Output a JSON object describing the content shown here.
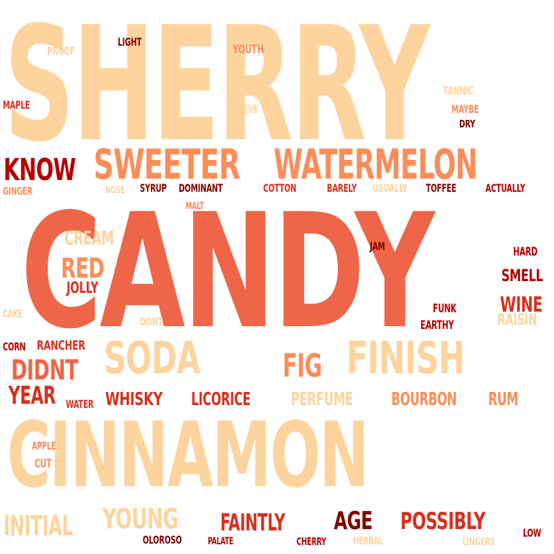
{
  "palette": {
    "peach": "#fdd49e",
    "salmon": "#fc8d59",
    "coral": "#ef6548",
    "red": "#d7301f",
    "dark_red": "#b30000",
    "maroon": "#7f0000"
  },
  "words": [
    {
      "text": "SHERRY",
      "color": "peach"
    },
    {
      "text": "CANDY",
      "color": "coral"
    },
    {
      "text": "CINNAMON",
      "color": "peach"
    },
    {
      "text": "SWEETER",
      "color": "salmon"
    },
    {
      "text": "WATERMELON",
      "color": "salmon"
    },
    {
      "text": "SODA",
      "color": "peach"
    },
    {
      "text": "FINISH",
      "color": "peach"
    },
    {
      "text": "KNOW",
      "color": "dark_red"
    },
    {
      "text": "FIG",
      "color": "salmon"
    },
    {
      "text": "RED",
      "color": "salmon"
    },
    {
      "text": "DIDNT",
      "color": "coral"
    },
    {
      "text": "YEAR",
      "color": "red"
    },
    {
      "text": "POSSIBLY",
      "color": "red"
    },
    {
      "text": "AGE",
      "color": "maroon"
    },
    {
      "text": "FAINTLY",
      "color": "red"
    },
    {
      "text": "YOUNG",
      "color": "peach"
    },
    {
      "text": "INITIAL",
      "color": "peach"
    },
    {
      "text": "WHISKY",
      "color": "red"
    },
    {
      "text": "LICORICE",
      "color": "red"
    },
    {
      "text": "PERFUME",
      "color": "peach"
    },
    {
      "text": "BOURBON",
      "color": "salmon"
    },
    {
      "text": "RUM",
      "color": "salmon"
    },
    {
      "text": "CREAM",
      "color": "peach"
    },
    {
      "text": "WINE",
      "color": "red"
    },
    {
      "text": "SMELL",
      "color": "dark_red"
    },
    {
      "text": "JOLLY",
      "color": "red"
    },
    {
      "text": "RAISIN",
      "color": "peach"
    },
    {
      "text": "RANCHER",
      "color": "red"
    },
    {
      "text": "PROOF",
      "color": "peach"
    },
    {
      "text": "LIGHT",
      "color": "maroon"
    },
    {
      "text": "YOUTH",
      "color": "salmon"
    },
    {
      "text": "MAPLE",
      "color": "red"
    },
    {
      "text": "BELIEVE",
      "color": "peach"
    },
    {
      "text": "TANNIC",
      "color": "peach"
    },
    {
      "text": "MAYBE",
      "color": "salmon"
    },
    {
      "text": "DRY",
      "color": "maroon"
    },
    {
      "text": "GINGER",
      "color": "salmon"
    },
    {
      "text": "NOSE",
      "color": "peach"
    },
    {
      "text": "SYRUP",
      "color": "maroon"
    },
    {
      "text": "DOMINANT",
      "color": "maroon"
    },
    {
      "text": "COTTON",
      "color": "red"
    },
    {
      "text": "BARELY",
      "color": "red"
    },
    {
      "text": "USUALLY",
      "color": "peach"
    },
    {
      "text": "TOFFEE",
      "color": "maroon"
    },
    {
      "text": "ACTUALLY",
      "color": "dark_red"
    },
    {
      "text": "MALT",
      "color": "salmon"
    },
    {
      "text": "JAM",
      "color": "maroon"
    },
    {
      "text": "HARD",
      "color": "dark_red"
    },
    {
      "text": "CAKE",
      "color": "peach"
    },
    {
      "text": "DONT",
      "color": "peach"
    },
    {
      "text": "FUNK",
      "color": "dark_red"
    },
    {
      "text": "EARTHY",
      "color": "dark_red"
    },
    {
      "text": "CORN",
      "color": "dark_red"
    },
    {
      "text": "WATER",
      "color": "red"
    },
    {
      "text": "APPLE",
      "color": "salmon"
    },
    {
      "text": "CUT",
      "color": "salmon"
    },
    {
      "text": "OLOROSO",
      "color": "maroon"
    },
    {
      "text": "PALATE",
      "color": "dark_red"
    },
    {
      "text": "CHERRY",
      "color": "dark_red"
    },
    {
      "text": "HERBAL",
      "color": "peach"
    },
    {
      "text": "LINGERS",
      "color": "peach"
    },
    {
      "text": "LOW",
      "color": "dark_red"
    }
  ]
}
